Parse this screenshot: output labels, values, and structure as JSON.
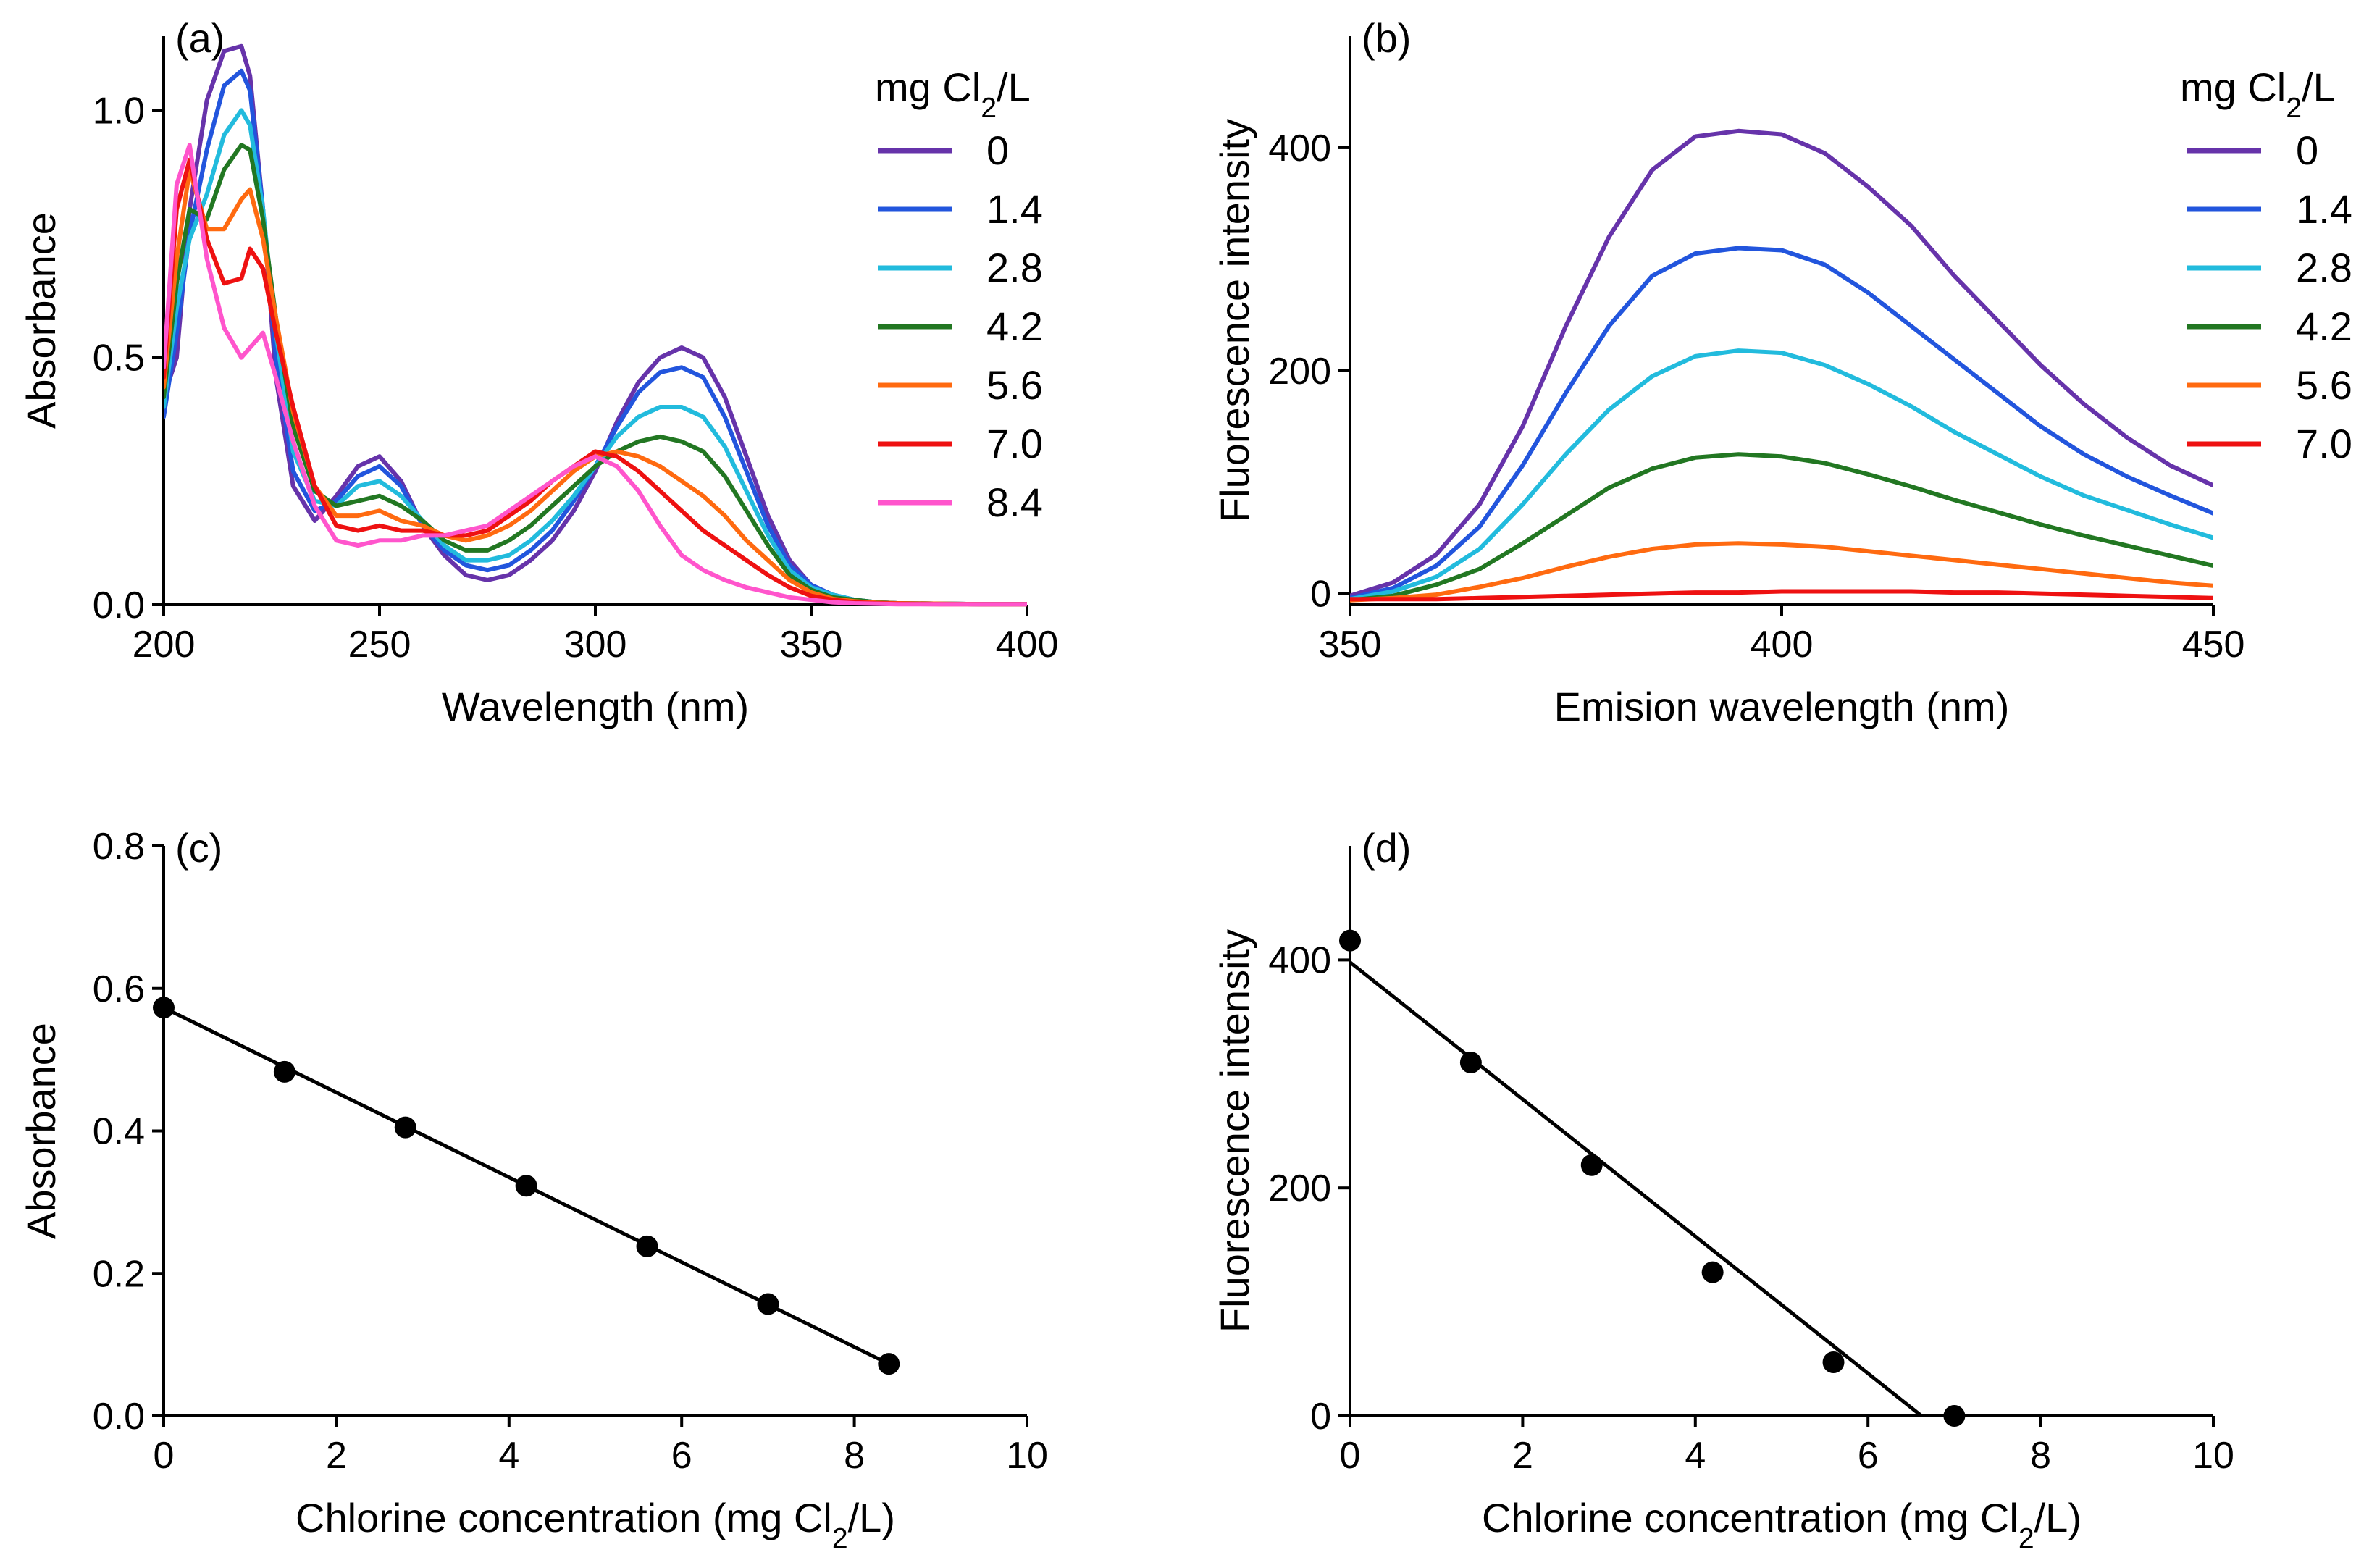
{
  "colors": {
    "axis": "#000000",
    "series": [
      "#6633aa",
      "#2255dd",
      "#22bbdd",
      "#227722",
      "#ff6a10",
      "#ee1111",
      "#ff55cc"
    ],
    "fit": "#000000",
    "points": "#000000"
  },
  "chart_data": [
    {
      "id": "a",
      "type": "line",
      "panel_label": "(a)",
      "xlabel": "Wavelength (nm)",
      "ylabel": "Absorbance",
      "xlim": [
        200,
        400
      ],
      "ylim": [
        0,
        1.15
      ],
      "xticks": [
        200,
        250,
        300,
        350,
        400
      ],
      "xtick_labels": [
        "200",
        "250",
        "300",
        "350",
        "400"
      ],
      "yticks": [
        0,
        0.5,
        1.0
      ],
      "ytick_labels": [
        "0.0",
        "0.5",
        "1.0"
      ],
      "legend_title_main": "mg Cl",
      "legend_title_sub": "2",
      "legend_title_tail": "/L",
      "legend_position": "top-right",
      "x": [
        200,
        203,
        206,
        210,
        214,
        218,
        220,
        223,
        226,
        230,
        235,
        240,
        245,
        250,
        255,
        260,
        265,
        270,
        275,
        280,
        285,
        290,
        295,
        300,
        305,
        310,
        315,
        320,
        325,
        330,
        335,
        340,
        345,
        350,
        355,
        360,
        365,
        370,
        380,
        390,
        400
      ],
      "series": [
        {
          "name": "0",
          "values": [
            0.42,
            0.5,
            0.8,
            1.02,
            1.12,
            1.13,
            1.07,
            0.8,
            0.46,
            0.24,
            0.17,
            0.22,
            0.28,
            0.3,
            0.25,
            0.16,
            0.1,
            0.06,
            0.05,
            0.06,
            0.09,
            0.13,
            0.19,
            0.27,
            0.37,
            0.45,
            0.5,
            0.52,
            0.5,
            0.42,
            0.3,
            0.18,
            0.09,
            0.04,
            0.02,
            0.01,
            0.005,
            0.003,
            0.002,
            0.001,
            0.001
          ]
        },
        {
          "name": "1.4",
          "values": [
            0.38,
            0.55,
            0.75,
            0.92,
            1.05,
            1.08,
            1.04,
            0.8,
            0.5,
            0.27,
            0.19,
            0.21,
            0.26,
            0.28,
            0.24,
            0.16,
            0.11,
            0.08,
            0.07,
            0.08,
            0.11,
            0.15,
            0.21,
            0.28,
            0.36,
            0.43,
            0.47,
            0.48,
            0.46,
            0.38,
            0.27,
            0.16,
            0.08,
            0.04,
            0.02,
            0.01,
            0.005,
            0.003,
            0.002,
            0.001,
            0.001
          ]
        },
        {
          "name": "2.8",
          "values": [
            0.4,
            0.6,
            0.74,
            0.83,
            0.95,
            1.0,
            0.97,
            0.8,
            0.55,
            0.31,
            0.21,
            0.2,
            0.24,
            0.25,
            0.22,
            0.17,
            0.12,
            0.09,
            0.09,
            0.1,
            0.13,
            0.17,
            0.22,
            0.28,
            0.34,
            0.38,
            0.4,
            0.4,
            0.38,
            0.32,
            0.23,
            0.14,
            0.07,
            0.035,
            0.02,
            0.01,
            0.005,
            0.003,
            0.002,
            0.001,
            0.001
          ]
        },
        {
          "name": "4.2",
          "values": [
            0.42,
            0.65,
            0.8,
            0.78,
            0.88,
            0.93,
            0.92,
            0.78,
            0.58,
            0.36,
            0.23,
            0.2,
            0.21,
            0.22,
            0.2,
            0.17,
            0.13,
            0.11,
            0.11,
            0.13,
            0.16,
            0.2,
            0.24,
            0.28,
            0.31,
            0.33,
            0.34,
            0.33,
            0.31,
            0.26,
            0.19,
            0.12,
            0.06,
            0.03,
            0.015,
            0.01,
            0.005,
            0.003,
            0.002,
            0.001,
            0.001
          ]
        },
        {
          "name": "5.6",
          "values": [
            0.44,
            0.7,
            0.88,
            0.76,
            0.76,
            0.82,
            0.84,
            0.74,
            0.58,
            0.39,
            0.24,
            0.18,
            0.18,
            0.19,
            0.17,
            0.16,
            0.14,
            0.13,
            0.14,
            0.16,
            0.19,
            0.23,
            0.27,
            0.3,
            0.31,
            0.3,
            0.28,
            0.25,
            0.22,
            0.18,
            0.13,
            0.09,
            0.05,
            0.025,
            0.012,
            0.007,
            0.004,
            0.003,
            0.002,
            0.001,
            0.001
          ]
        },
        {
          "name": "7.0",
          "values": [
            0.46,
            0.8,
            0.9,
            0.74,
            0.65,
            0.66,
            0.72,
            0.68,
            0.55,
            0.4,
            0.24,
            0.16,
            0.15,
            0.16,
            0.15,
            0.15,
            0.14,
            0.14,
            0.15,
            0.18,
            0.21,
            0.25,
            0.28,
            0.31,
            0.3,
            0.27,
            0.23,
            0.19,
            0.15,
            0.12,
            0.09,
            0.06,
            0.035,
            0.018,
            0.01,
            0.005,
            0.003,
            0.002,
            0.001,
            0.001,
            0.001
          ]
        },
        {
          "name": "8.4",
          "values": [
            0.48,
            0.85,
            0.93,
            0.7,
            0.56,
            0.5,
            0.52,
            0.55,
            0.46,
            0.33,
            0.2,
            0.13,
            0.12,
            0.13,
            0.13,
            0.14,
            0.14,
            0.15,
            0.16,
            0.19,
            0.22,
            0.25,
            0.28,
            0.3,
            0.28,
            0.23,
            0.16,
            0.1,
            0.07,
            0.05,
            0.035,
            0.025,
            0.015,
            0.01,
            0.005,
            0.003,
            0.002,
            0.001,
            0.001,
            0.001,
            0.001
          ]
        }
      ]
    },
    {
      "id": "b",
      "type": "line",
      "panel_label": "(b)",
      "xlabel": "Emision wavelength (nm)",
      "ylabel": "Fluorescence intensity",
      "xlim": [
        350,
        450
      ],
      "ylim": [
        -10,
        500
      ],
      "xticks": [
        350,
        400,
        450
      ],
      "xtick_labels": [
        "350",
        "400",
        "450"
      ],
      "yticks": [
        0,
        200,
        400
      ],
      "ytick_labels": [
        "0",
        "200",
        "400"
      ],
      "legend_title_main": "mg Cl",
      "legend_title_sub": "2",
      "legend_title_tail": "/L",
      "legend_position": "top-right",
      "x": [
        350,
        355,
        360,
        365,
        370,
        375,
        380,
        385,
        390,
        395,
        400,
        405,
        410,
        415,
        420,
        425,
        430,
        435,
        440,
        445,
        450
      ],
      "series": [
        {
          "name": "0",
          "values": [
            -2,
            10,
            35,
            80,
            150,
            240,
            320,
            380,
            410,
            415,
            412,
            395,
            365,
            330,
            285,
            245,
            205,
            170,
            140,
            115,
            97
          ]
        },
        {
          "name": "1.4",
          "values": [
            -4,
            5,
            25,
            60,
            115,
            180,
            240,
            285,
            305,
            310,
            308,
            295,
            270,
            240,
            210,
            180,
            150,
            125,
            105,
            88,
            72
          ]
        },
        {
          "name": "2.8",
          "values": [
            -5,
            2,
            15,
            40,
            80,
            125,
            165,
            195,
            213,
            218,
            216,
            205,
            188,
            168,
            145,
            125,
            105,
            88,
            75,
            62,
            50
          ]
        },
        {
          "name": "4.2",
          "values": [
            -6,
            -2,
            8,
            22,
            45,
            70,
            95,
            112,
            122,
            125,
            123,
            117,
            107,
            96,
            84,
            73,
            62,
            52,
            43,
            34,
            25
          ]
        },
        {
          "name": "5.6",
          "values": [
            -6,
            -4,
            -1,
            6,
            14,
            24,
            33,
            40,
            44,
            45,
            44,
            42,
            38,
            34,
            30,
            26,
            22,
            18,
            14,
            10,
            7
          ]
        },
        {
          "name": "7.0",
          "values": [
            -5,
            -5,
            -5,
            -4,
            -3,
            -2,
            -1,
            0,
            1,
            1,
            2,
            2,
            2,
            2,
            1,
            1,
            0,
            -1,
            -2,
            -3,
            -4
          ]
        }
      ]
    },
    {
      "id": "c",
      "type": "scatter",
      "panel_label": "(c)",
      "xlabel_main": "Chlorine concentration (mg Cl",
      "xlabel_sub": "2",
      "xlabel_tail": "/L)",
      "ylabel": "Absorbance",
      "xlim": [
        0,
        10
      ],
      "ylim": [
        0,
        0.8
      ],
      "xticks": [
        0,
        2,
        4,
        6,
        8,
        10
      ],
      "xtick_labels": [
        "0",
        "2",
        "4",
        "6",
        "8",
        "10"
      ],
      "yticks": [
        0,
        0.2,
        0.4,
        0.6,
        0.8
      ],
      "ytick_labels": [
        "0.0",
        "0.2",
        "0.4",
        "0.6",
        "0.8"
      ],
      "x": [
        0,
        1.4,
        2.8,
        4.2,
        5.6,
        7.0,
        8.4
      ],
      "y": [
        0.573,
        0.483,
        0.405,
        0.323,
        0.238,
        0.157,
        0.073
      ],
      "fit": {
        "x": [
          0,
          8.4
        ],
        "y": [
          0.573,
          0.073
        ]
      }
    },
    {
      "id": "d",
      "type": "scatter",
      "panel_label": "(d)",
      "xlabel_main": "Chlorine concentration (mg Cl",
      "xlabel_sub": "2",
      "xlabel_tail": "/L)",
      "ylabel": "Fluorescence intensity",
      "xlim": [
        0,
        10
      ],
      "ylim": [
        0,
        500
      ],
      "xticks": [
        0,
        2,
        4,
        6,
        8,
        10
      ],
      "xtick_labels": [
        "0",
        "2",
        "4",
        "6",
        "8",
        "10"
      ],
      "yticks": [
        0,
        200,
        400
      ],
      "ytick_labels": [
        "0",
        "200",
        "400"
      ],
      "x": [
        0,
        1.4,
        2.8,
        4.2,
        5.6,
        7.0
      ],
      "y": [
        417,
        310,
        220,
        126,
        47,
        0
      ],
      "fit": {
        "x": [
          0,
          6.62
        ],
        "y": [
          398,
          0
        ]
      }
    }
  ]
}
